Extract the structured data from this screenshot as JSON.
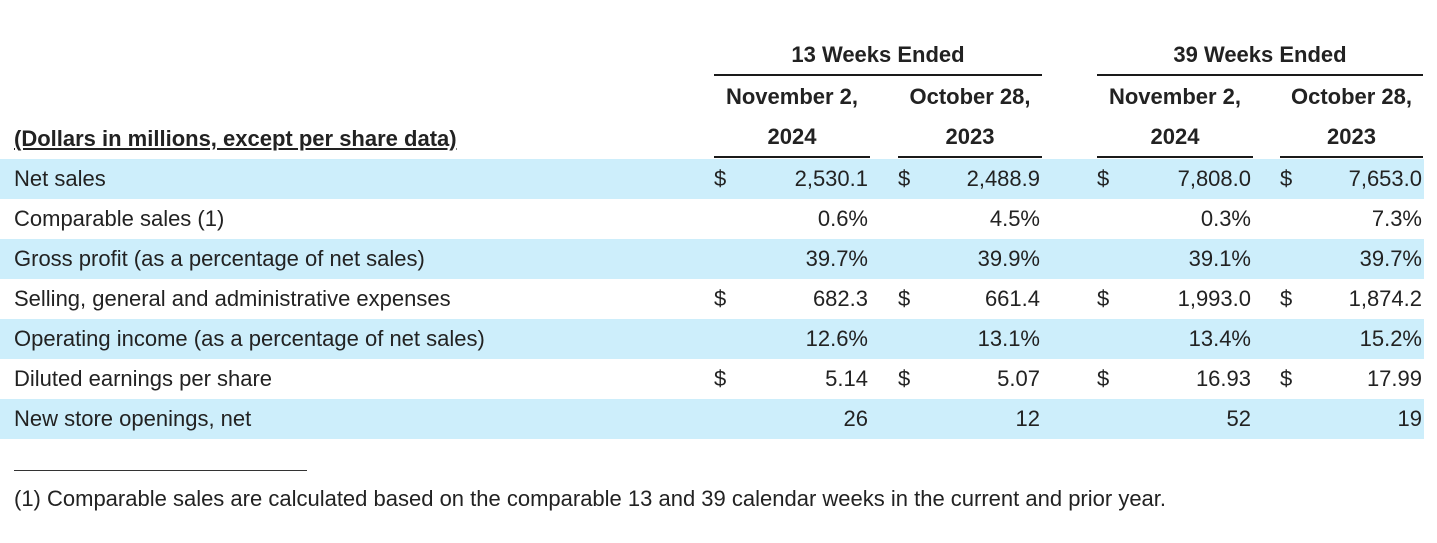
{
  "table": {
    "units_caption": "(Dollars in millions, except per share data)",
    "groups": [
      {
        "label": "13 Weeks Ended"
      },
      {
        "label": "39 Weeks Ended"
      }
    ],
    "periods": [
      {
        "line1": "November 2,",
        "line2": "2024"
      },
      {
        "line1": "October 28,",
        "line2": "2023"
      },
      {
        "line1": "November 2,",
        "line2": "2024"
      },
      {
        "line1": "October 28,",
        "line2": "2023"
      }
    ],
    "rows": [
      {
        "label": "Net sales",
        "values": [
          {
            "dollar": "$",
            "value": "2,530.1"
          },
          {
            "dollar": "$",
            "value": "2,488.9"
          },
          {
            "dollar": "$",
            "value": "7,808.0"
          },
          {
            "dollar": "$",
            "value": "7,653.0"
          }
        ]
      },
      {
        "label": "Comparable sales (1)",
        "values": [
          {
            "dollar": "",
            "value": "0.6%"
          },
          {
            "dollar": "",
            "value": "4.5%"
          },
          {
            "dollar": "",
            "value": "0.3%"
          },
          {
            "dollar": "",
            "value": "7.3%"
          }
        ]
      },
      {
        "label": "Gross profit (as a percentage of net sales)",
        "values": [
          {
            "dollar": "",
            "value": "39.7%"
          },
          {
            "dollar": "",
            "value": "39.9%"
          },
          {
            "dollar": "",
            "value": "39.1%"
          },
          {
            "dollar": "",
            "value": "39.7%"
          }
        ]
      },
      {
        "label": "Selling, general and administrative expenses",
        "values": [
          {
            "dollar": "$",
            "value": "682.3"
          },
          {
            "dollar": "$",
            "value": "661.4"
          },
          {
            "dollar": "$",
            "value": "1,993.0"
          },
          {
            "dollar": "$",
            "value": "1,874.2"
          }
        ]
      },
      {
        "label": "Operating income (as a percentage of net sales)",
        "values": [
          {
            "dollar": "",
            "value": "12.6%"
          },
          {
            "dollar": "",
            "value": "13.1%"
          },
          {
            "dollar": "",
            "value": "13.4%"
          },
          {
            "dollar": "",
            "value": "15.2%"
          }
        ]
      },
      {
        "label": "Diluted earnings per share",
        "values": [
          {
            "dollar": "$",
            "value": "5.14"
          },
          {
            "dollar": "$",
            "value": "5.07"
          },
          {
            "dollar": "$",
            "value": "16.93"
          },
          {
            "dollar": "$",
            "value": "17.99"
          }
        ]
      },
      {
        "label": "New store openings, net",
        "values": [
          {
            "dollar": "",
            "value": "26"
          },
          {
            "dollar": "",
            "value": "12"
          },
          {
            "dollar": "",
            "value": "52"
          },
          {
            "dollar": "",
            "value": "19"
          }
        ]
      }
    ],
    "shade_color": "#cdeefb"
  },
  "footnote": "(1) Comparable sales are calculated based on the comparable 13 and 39 calendar weeks in the current and prior year."
}
